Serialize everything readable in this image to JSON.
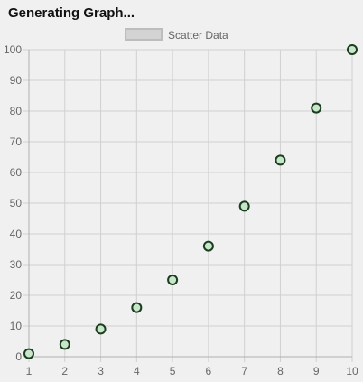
{
  "header": {
    "title": "Generating Graph..."
  },
  "chart_data": {
    "type": "scatter",
    "title": "",
    "xlabel": "",
    "ylabel": "",
    "xlim": [
      1,
      10
    ],
    "ylim": [
      0,
      100
    ],
    "x_ticks": [
      1,
      2,
      3,
      4,
      5,
      6,
      7,
      8,
      9,
      10
    ],
    "y_ticks": [
      0,
      10,
      20,
      30,
      40,
      50,
      60,
      70,
      80,
      90,
      100
    ],
    "grid": true,
    "legend_position": "top-center",
    "series": [
      {
        "name": "Scatter Data",
        "points": [
          {
            "x": 1,
            "y": 1
          },
          {
            "x": 2,
            "y": 4
          },
          {
            "x": 3,
            "y": 9
          },
          {
            "x": 4,
            "y": 16
          },
          {
            "x": 5,
            "y": 25
          },
          {
            "x": 6,
            "y": 36
          },
          {
            "x": 7,
            "y": 49
          },
          {
            "x": 8,
            "y": 64
          },
          {
            "x": 9,
            "y": 81
          },
          {
            "x": 10,
            "y": 100
          }
        ],
        "point_fill": "#c8e6c9",
        "point_stroke": "#1b3d1f",
        "legend_fill": "#d3d3d3",
        "legend_stroke": "#bdbdbd"
      }
    ],
    "grid_color": "#d0d0d0",
    "axis_color": "#b0b0b0"
  }
}
